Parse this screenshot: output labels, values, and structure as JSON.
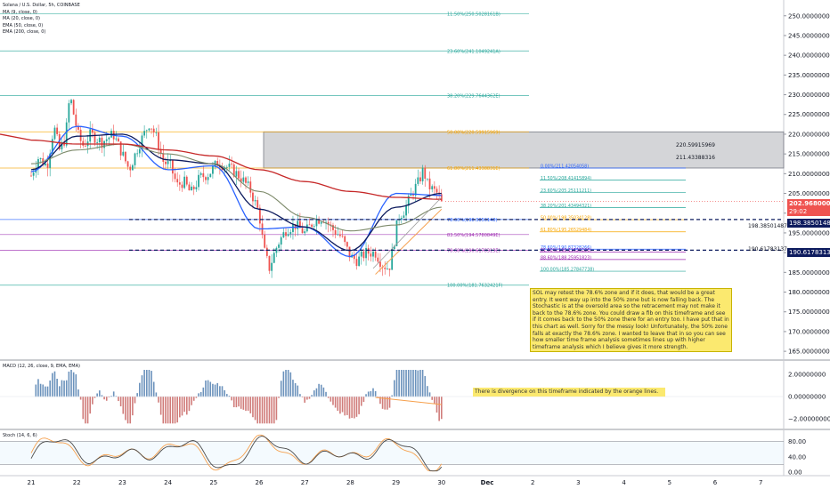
{
  "legend": {
    "title": "Solana / U.S. Dollar, 5h, COINBASE",
    "ma9": "MA (9, close, 0)",
    "ma20": "MA (20, close, 0)",
    "ema50": "EMA (50, close, 0)",
    "ema200": "EMA (200, close, 0)"
  },
  "price_axis": {
    "labels": [
      "250.00000000",
      "245.00000000",
      "240.00000000",
      "235.00000000",
      "230.00000000",
      "225.00000000",
      "220.00000000",
      "215.00000000",
      "210.00000000",
      "205.00000000",
      "200.00000000",
      "195.00000000",
      "190.00000000",
      "185.00000000",
      "180.00000000",
      "175.00000000",
      "170.00000000",
      "165.00000000"
    ],
    "current_price": "202.96800000",
    "countdown": "29:02",
    "level1": "198.38501487",
    "level2": "190.61783137"
  },
  "x_axis": {
    "labels": [
      "21",
      "22",
      "23",
      "24",
      "25",
      "26",
      "27",
      "28",
      "29",
      "30",
      "Dec",
      "2",
      "3",
      "4",
      "5",
      "6",
      "7"
    ]
  },
  "zone": {
    "upper": "220.59915969",
    "lower": "211.43388316"
  },
  "fib_big": [
    {
      "label": "11.50%(250.5028161B)",
      "price": 250.5,
      "color": "#26a69a"
    },
    {
      "label": "23.60%(241.1049241A)",
      "price": 241.1,
      "color": "#26a69a"
    },
    {
      "label": "38.20%(229.7644362E)",
      "price": 229.76,
      "color": "#26a69a"
    },
    {
      "label": "50.00%(220.59915969)",
      "price": 220.6,
      "color": "#f7a600"
    },
    {
      "label": "61.80%(211.4338831E)",
      "price": 211.43,
      "color": "#f7a600"
    },
    {
      "label": "78.60%(198.3850148)",
      "price": 198.39,
      "color": "#2962ff"
    },
    {
      "label": "83.50%(194.5780849E)",
      "price": 194.58,
      "color": "#9c27b0"
    },
    {
      "label": "78.60%(190.6178313E)",
      "price": 190.62,
      "color": "#9c27b0"
    },
    {
      "label": "100.00%(181.7632421F)",
      "price": 181.76,
      "color": "#26a69a"
    }
  ],
  "fib_small": [
    {
      "label": "0.00%(211.42054058)",
      "price": 211.42,
      "color": "#2962ff"
    },
    {
      "label": "11.50%(208.41415894)",
      "price": 208.41,
      "color": "#26a69a"
    },
    {
      "label": "23.60%(205.25111211)",
      "price": 205.25,
      "color": "#26a69a"
    },
    {
      "label": "38.20%(201.43494321)",
      "price": 201.43,
      "color": "#26a69a"
    },
    {
      "label": "50.00%(198.35034128)",
      "price": 198.35,
      "color": "#f7a600"
    },
    {
      "label": "61.80%(195.26529484)",
      "price": 195.27,
      "color": "#f7a600"
    },
    {
      "label": "78.60%(190.87328266)",
      "price": 190.87,
      "color": "#2962ff"
    },
    {
      "label": "81.50%(190.11520226)",
      "price": 190.12,
      "color": "#9c27b0"
    },
    {
      "label": "88.60%(188.25951823)",
      "price": 188.26,
      "color": "#9c27b0"
    },
    {
      "label": "100.00%(185.27847738)",
      "price": 185.28,
      "color": "#26a69a"
    }
  ],
  "note": {
    "text": "SOL may retest the 78.6% zone and if it does, that would be a great entry. It went way up into the 50% zone but is now falling back. The Stochastic is at the oversold area so the retracement may not make it back to the 78.6% zone. You could draw a fib on this timeframe and see if it comes back to the 50% zone there for an entry too. I have put that in this chart as well. Sorry for the messy look! Unfortunately, the 50% zone falls at exactly the 78.6% zone. I wanted to leave that in so you can see how smaller time frame analysis sometimes lines up with higher timeframe analysis which I believe gives it more strength."
  },
  "macd": {
    "legend": "MACD (12, 26, close, 9, EMA, EMA)",
    "axis": [
      "2.00000000",
      "0.00000000",
      "−2.00000000"
    ],
    "note": "There is divergence on this timeframe indicated by the orange lines."
  },
  "stoch": {
    "legend": "Stoch (14, 6, 6)",
    "axis": [
      "80.00",
      "40.00",
      "0.00"
    ]
  },
  "colors": {
    "up": "#26a69a",
    "down": "#ef5350",
    "ma9": "#2962ff",
    "ma20": "#0d1b5e",
    "ema50": "#7d8a6a",
    "ema200": "#c62828",
    "stoch_k": "#f6a04d",
    "stoch_d": "#4a4a4a"
  },
  "chart_data": {
    "type": "line",
    "title": "Solana / U.S. Dollar, 5h, COINBASE",
    "xlabel": "",
    "ylabel": "",
    "categories": [
      "21",
      "22",
      "23",
      "24",
      "25",
      "26",
      "27",
      "28",
      "29",
      "30"
    ],
    "ylim": [
      163,
      254
    ],
    "series": [
      {
        "name": "MA (9, close, 0)",
        "values": [
          210.5,
          222.0,
          219.5,
          211.0,
          212.0,
          196.0,
          196.5,
          189.0,
          205.0,
          204.5
        ]
      },
      {
        "name": "MA (20, close, 0)",
        "values": [
          211.0,
          219.5,
          220.0,
          213.5,
          212.5,
          201.0,
          196.5,
          190.5,
          201.5,
          205.0
        ]
      },
      {
        "name": "EMA (50, close, 0)",
        "values": [
          212.5,
          216.0,
          217.5,
          215.0,
          212.5,
          205.5,
          199.0,
          195.5,
          197.0,
          201.5
        ]
      },
      {
        "name": "EMA (200, close, 0)",
        "values": [
          218.5,
          217.5,
          217.5,
          216.0,
          214.5,
          211.0,
          208.0,
          205.5,
          204.0,
          203.5
        ]
      }
    ],
    "price_high": 234.5,
    "price_low": 181.8,
    "last_close": 202.968
  }
}
